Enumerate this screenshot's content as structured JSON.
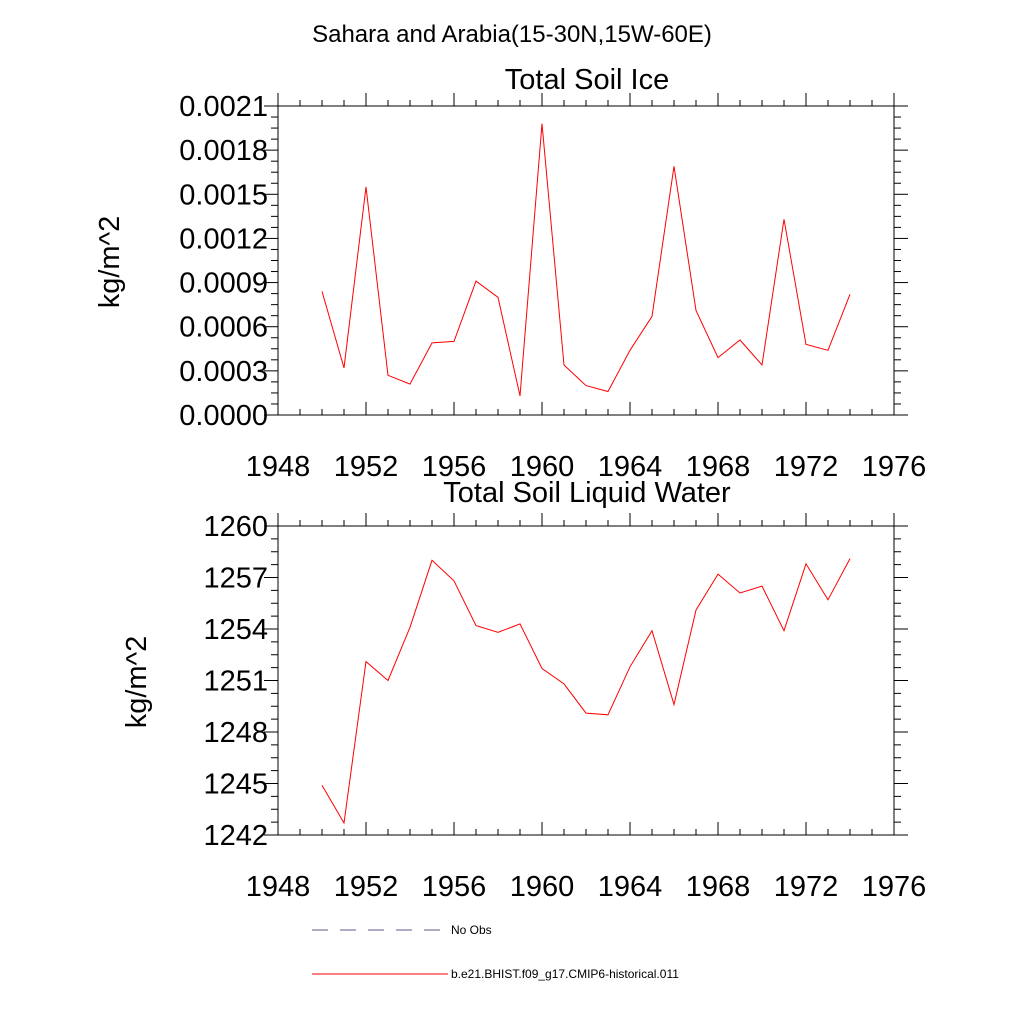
{
  "figure": {
    "suptitle": "Sahara and Arabia(15-30N,15W-60E)"
  },
  "chart_data": [
    {
      "type": "line",
      "title": "Total Soil Ice",
      "xlabel": "",
      "ylabel": "kg/m^2",
      "xlim": [
        1948,
        1976
      ],
      "ylim": [
        0.0,
        0.0021
      ],
      "xticks": [
        1948,
        1952,
        1956,
        1960,
        1964,
        1968,
        1972,
        1976
      ],
      "xtick_labels": [
        "1948",
        "1952",
        "1956",
        "1960",
        "1964",
        "1968",
        "1972",
        "1976"
      ],
      "yticks": [
        0.0,
        0.0003,
        0.0006,
        0.0009,
        0.0012,
        0.0015,
        0.0018,
        0.0021
      ],
      "ytick_labels": [
        "0.0000",
        "0.0003",
        "0.0006",
        "0.0009",
        "0.0012",
        "0.0015",
        "0.0018",
        "0.0021"
      ],
      "grid": false,
      "series": [
        {
          "name": "b.e21.BHIST.f09_g17.CMIP6-historical.011",
          "color": "#ff0000",
          "x": [
            1950,
            1951,
            1952,
            1953,
            1954,
            1955,
            1956,
            1957,
            1958,
            1959,
            1960,
            1961,
            1962,
            1963,
            1964,
            1965,
            1966,
            1967,
            1968,
            1969,
            1970,
            1971,
            1972,
            1973,
            1974
          ],
          "y": [
            0.00084,
            0.00032,
            0.00155,
            0.00027,
            0.00021,
            0.00049,
            0.0005,
            0.00091,
            0.0008,
            0.00013,
            0.00198,
            0.00034,
            0.0002,
            0.00016,
            0.00044,
            0.00067,
            0.00169,
            0.00071,
            0.00039,
            0.00051,
            0.00034,
            0.00133,
            0.00048,
            0.00044,
            0.00082
          ]
        }
      ]
    },
    {
      "type": "line",
      "title": "Total Soil Liquid Water",
      "xlabel": "",
      "ylabel": "kg/m^2",
      "xlim": [
        1948,
        1976
      ],
      "ylim": [
        1242,
        1260
      ],
      "xticks": [
        1948,
        1952,
        1956,
        1960,
        1964,
        1968,
        1972,
        1976
      ],
      "xtick_labels": [
        "1948",
        "1952",
        "1956",
        "1960",
        "1964",
        "1968",
        "1972",
        "1976"
      ],
      "yticks": [
        1242,
        1245,
        1248,
        1251,
        1254,
        1257,
        1260
      ],
      "ytick_labels": [
        "1242",
        "1245",
        "1248",
        "1251",
        "1254",
        "1257",
        "1260"
      ],
      "grid": false,
      "series": [
        {
          "name": "b.e21.BHIST.f09_g17.CMIP6-historical.011",
          "color": "#ff0000",
          "x": [
            1950,
            1951,
            1952,
            1953,
            1954,
            1955,
            1956,
            1957,
            1958,
            1959,
            1960,
            1961,
            1962,
            1963,
            1964,
            1965,
            1966,
            1967,
            1968,
            1969,
            1970,
            1971,
            1972,
            1973,
            1974
          ],
          "y": [
            1244.9,
            1242.7,
            1252.1,
            1251.0,
            1254.1,
            1258.0,
            1256.8,
            1254.2,
            1253.8,
            1254.3,
            1251.7,
            1250.8,
            1249.1,
            1249.0,
            1251.8,
            1253.9,
            1249.6,
            1255.1,
            1257.2,
            1256.1,
            1256.5,
            1253.9,
            1257.8,
            1255.7,
            1258.1
          ]
        }
      ]
    }
  ],
  "legend": {
    "placement": "bottom",
    "entries": [
      {
        "label": "No Obs",
        "color": "#5a5a8c",
        "style": "dashed"
      },
      {
        "label": "b.e21.BHIST.f09_g17.CMIP6-historical.011",
        "color": "#ff0000",
        "style": "solid"
      }
    ]
  }
}
